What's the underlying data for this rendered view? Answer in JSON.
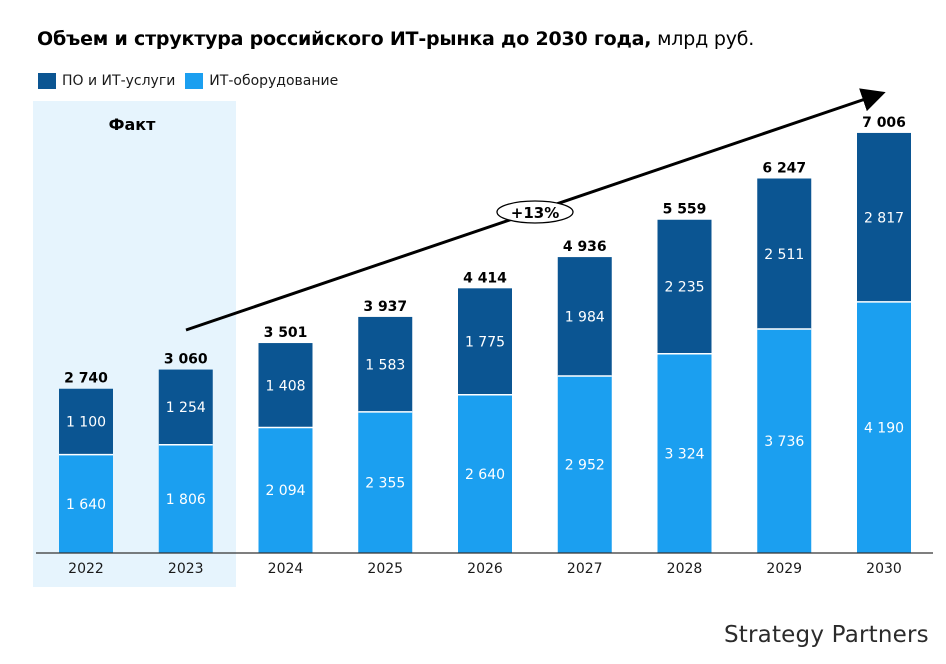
{
  "title": {
    "bold": "Объем и структура российского ИТ-рынка до 2030 года,",
    "unit": "млрд руб."
  },
  "colors": {
    "software": "#0b5592",
    "hardware": "#1b9ff0",
    "fact_bg": "#e6f4fd",
    "logo_accent": "#2fb3d9"
  },
  "logo": "Strategy Partners",
  "chart_data": {
    "type": "bar",
    "stacked": true,
    "title": "Объем и структура российского ИТ-рынка до 2030 года, млрд руб.",
    "xlabel": "",
    "ylabel": "",
    "categories": [
      "2022",
      "2023",
      "2024",
      "2025",
      "2026",
      "2027",
      "2028",
      "2029",
      "2030"
    ],
    "series": [
      {
        "name": "ИТ-оборудование",
        "color": "#1b9ff0",
        "values": [
          1640,
          1806,
          2094,
          2355,
          2640,
          2952,
          3324,
          3736,
          4190
        ],
        "labels": [
          "1 640",
          "1 806",
          "2 094",
          "2 355",
          "2 640",
          "2 952",
          "3 324",
          "3 736",
          "4 190"
        ]
      },
      {
        "name": "ПО и ИТ-услуги",
        "color": "#0b5592",
        "values": [
          1100,
          1254,
          1408,
          1583,
          1775,
          1984,
          2235,
          2511,
          2817
        ],
        "labels": [
          "1 100",
          "1 254",
          "1 408",
          "1 583",
          "1 775",
          "1 984",
          "2 235",
          "2 511",
          "2 817"
        ]
      }
    ],
    "totals": [
      2740,
      3060,
      3501,
      3937,
      4414,
      4936,
      5559,
      6247,
      7006
    ],
    "total_labels": [
      "2 740",
      "3 060",
      "3 501",
      "3 937",
      "4 414",
      "4 936",
      "5 559",
      "6 247",
      "7 006"
    ],
    "legend": [
      "ПО и ИТ-услуги",
      "ИТ-оборудование"
    ],
    "legend_position": "top-left",
    "ylim": [
      0,
      7006
    ],
    "grid": false,
    "fact_region": {
      "label": "Факт",
      "categories": [
        "2022",
        "2023"
      ]
    },
    "annotation": {
      "label": "+13%",
      "type": "trend-arrow",
      "from": "2023",
      "to": "2030"
    }
  }
}
